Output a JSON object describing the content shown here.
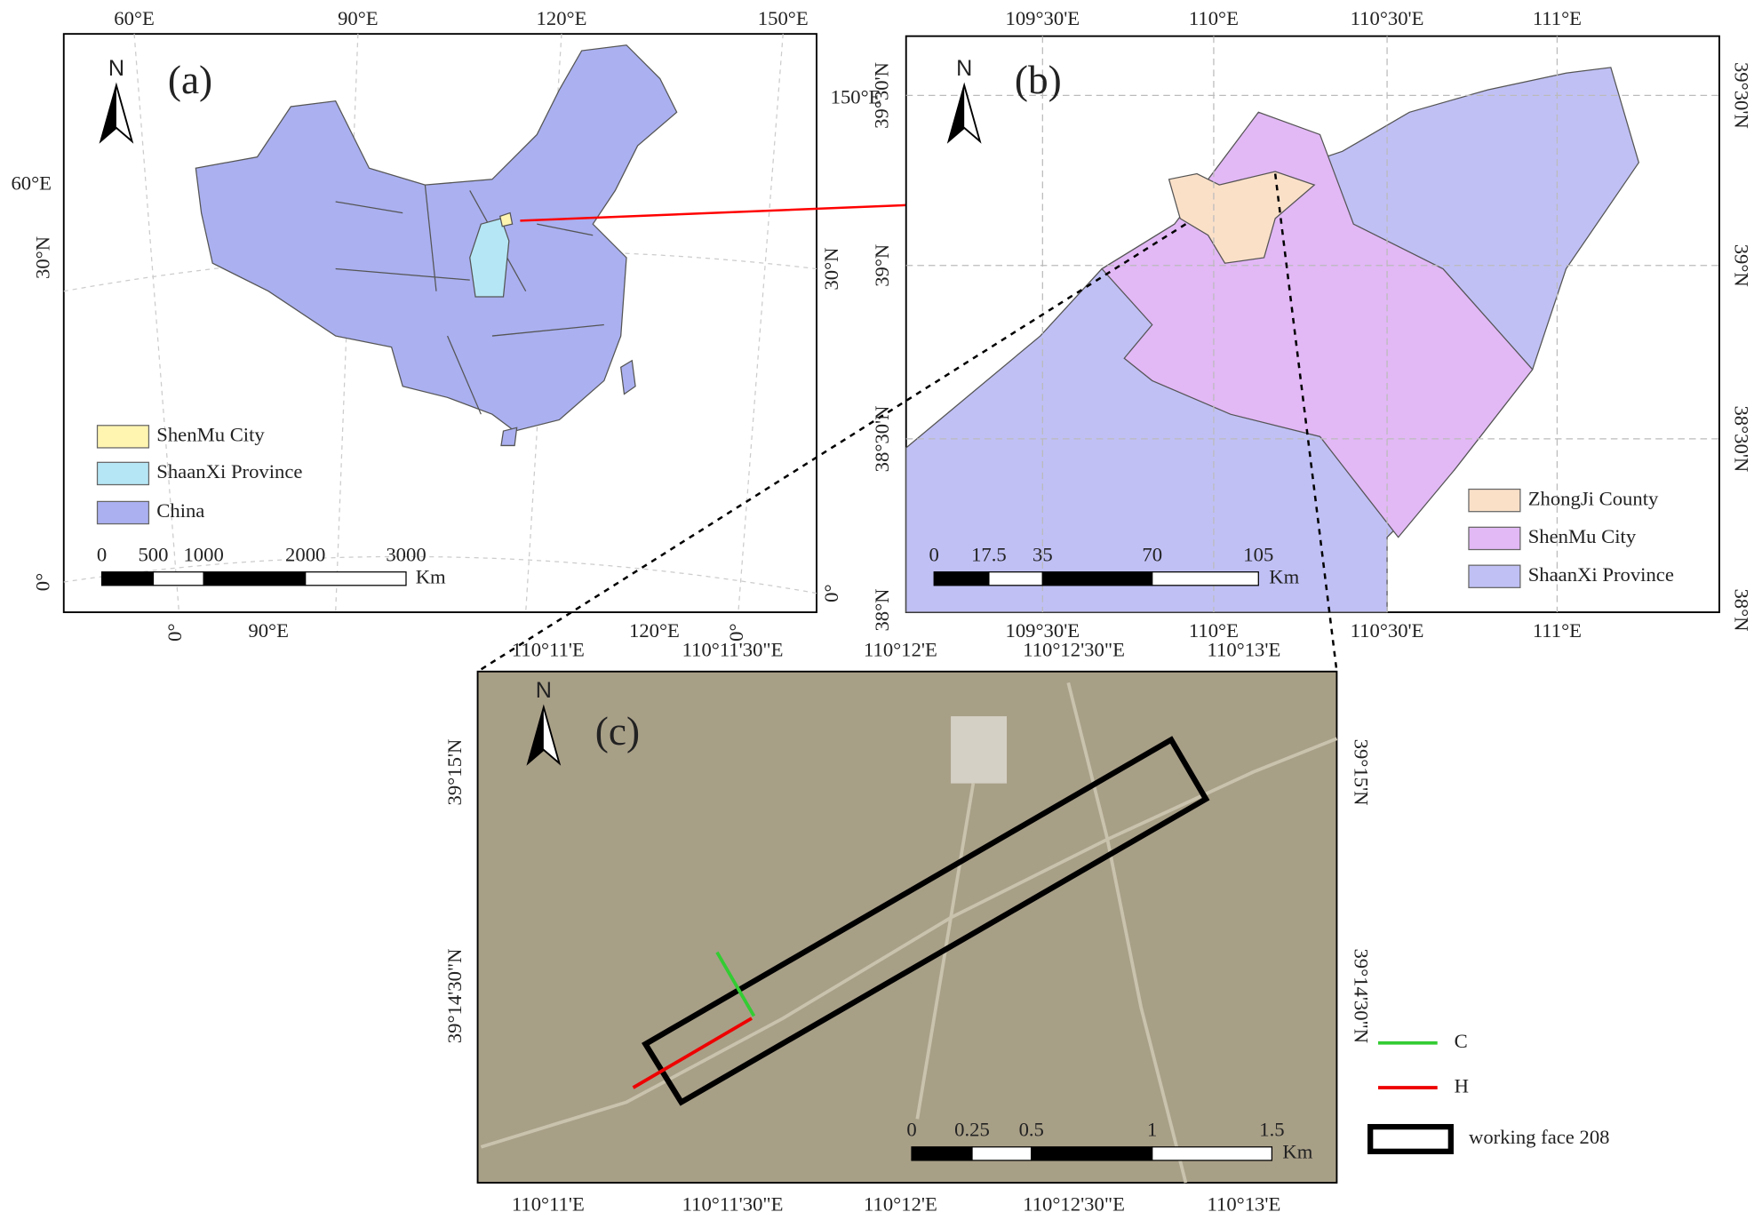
{
  "panels": {
    "a": {
      "label": "(a)",
      "north": "N",
      "top_ticks": [
        "60°E",
        "90°E",
        "120°E",
        "150°E"
      ],
      "bottom_ticks": [
        "0°",
        "90°E",
        "120°E",
        "0°"
      ],
      "left_ticks": [
        "60°E",
        "30°N",
        "0°"
      ],
      "right_ticks": [
        "150°E",
        "30°N",
        "0°"
      ],
      "legend": [
        "ShenMu  City",
        "ShaanXi Province",
        "China"
      ],
      "scale_labels": [
        "0",
        "500",
        "1000",
        "2000",
        "3000"
      ],
      "scale_unit": "Km"
    },
    "b": {
      "label": "(b)",
      "north": "N",
      "top_ticks": [
        "109°30'E",
        "110°E",
        "110°30'E",
        "111°E"
      ],
      "bottom_ticks": [
        "109°30'E",
        "110°E",
        "110°30'E",
        "111°E"
      ],
      "left_ticks": [
        "39°30'N",
        "39°N",
        "38°30'N",
        "38°N"
      ],
      "right_ticks": [
        "39°30'N",
        "39°N",
        "38°30'N",
        "38°N"
      ],
      "legend": [
        "ZhongJi County",
        "ShenMu City",
        "ShaanXi Province"
      ],
      "scale_labels": [
        "0",
        "17.5",
        "35",
        "70",
        "105"
      ],
      "scale_unit": "Km"
    },
    "c": {
      "label": "(c)",
      "north": "N",
      "top_ticks": [
        "110°11'E",
        "110°11'30\"E",
        "110°12'E",
        "110°12'30\"E",
        "110°13'E"
      ],
      "bottom_ticks": [
        "110°11'E",
        "110°11'30\"E",
        "110°12'E",
        "110°12'30\"E",
        "110°13'E"
      ],
      "left_ticks": [
        "39°15'N",
        "39°14'30\"N"
      ],
      "right_ticks": [
        "39°15'N",
        "39°14'30\"N"
      ],
      "legend": [
        "C",
        "H",
        "working face 208"
      ],
      "scale_labels": [
        "0",
        "0.25",
        "0.5",
        "1",
        "1.5"
      ],
      "scale_unit": "Km"
    }
  }
}
